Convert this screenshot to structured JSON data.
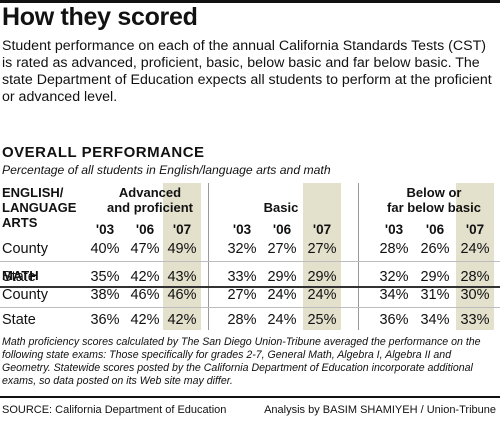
{
  "title": "How they scored",
  "intro": "Student performance on each of the annual California Standards Tests (CST) is rated as advanced, proficient, basic, below basic and far below basic. The state Department of Education expects all students to perform at the proficient or advanced level.",
  "section_title": "OVERALL PERFORMANCE",
  "subtitle": "Percentage of all students in English/language arts and math",
  "footnote": "Math proficiency scores calculated by The San Diego Union-Tribune averaged the performance on the following state exams: Those specifically for grades 2-7, General Math, Algebra I, Algebra II and Geometry. Statewide scores posted by the California Department of Education incorporate additional exams, so data posted on its Web site may differ.",
  "source": "SOURCE: California Department of Education",
  "credit": "Analysis by BASIM SHAMIYEH / Union-Tribune",
  "highlight_color": "#e3e0cc",
  "chart_data": {
    "type": "table",
    "title": "OVERALL PERFORMANCE",
    "subtitle": "Percentage of all students in English/language arts and math",
    "groups": [
      {
        "label_line1": "Advanced",
        "label_line2": "and proficient"
      },
      {
        "label_line1": "",
        "label_line2": "Basic"
      },
      {
        "label_line1": "Below or",
        "label_line2": "far below basic"
      }
    ],
    "years": [
      "'03",
      "'06",
      "'07"
    ],
    "highlighted_year": "'07",
    "subjects": [
      {
        "label_lines": [
          "ENGLISH/",
          "LANGUAGE",
          "ARTS"
        ],
        "rows": [
          {
            "name": "County",
            "values": [
              "40%",
              "47%",
              "49%",
              "32%",
              "27%",
              "27%",
              "28%",
              "26%",
              "24%"
            ]
          },
          {
            "name": "State",
            "values": [
              "35%",
              "42%",
              "43%",
              "33%",
              "29%",
              "29%",
              "32%",
              "29%",
              "28%"
            ]
          }
        ]
      },
      {
        "label_lines": [
          "MATH"
        ],
        "rows": [
          {
            "name": "County",
            "values": [
              "38%",
              "46%",
              "46%",
              "27%",
              "24%",
              "24%",
              "34%",
              "31%",
              "30%"
            ]
          },
          {
            "name": "State",
            "values": [
              "36%",
              "42%",
              "42%",
              "28%",
              "24%",
              "25%",
              "36%",
              "34%",
              "33%"
            ]
          }
        ]
      }
    ]
  }
}
